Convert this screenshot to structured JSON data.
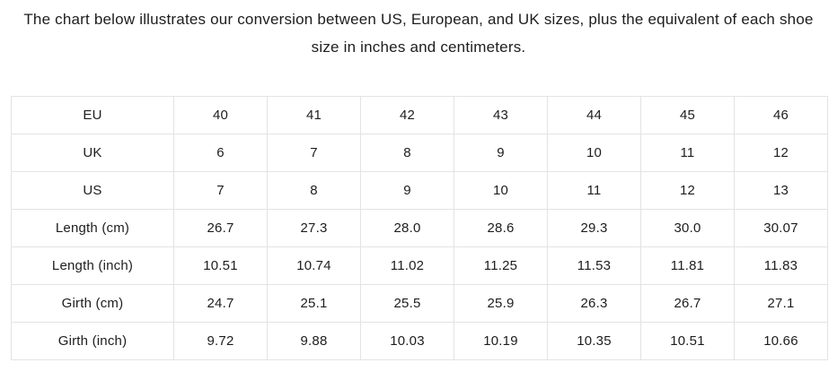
{
  "heading": "The chart below illustrates our conversion between US, European, and UK sizes, plus the equivalent of each shoe size in inches and centimeters.",
  "colors": {
    "background": "#ffffff",
    "text": "#1d1d1d",
    "table_border": "#e3e3e3"
  },
  "chart_data": {
    "type": "table",
    "title": "The chart below illustrates our conversion between US, European, and UK sizes, plus the equivalent of each shoe size in inches and centimeters.",
    "row_headers": [
      "EU",
      "UK",
      "US",
      "Length (cm)",
      "Length (inch)",
      "Girth (cm)",
      "Girth (inch)"
    ],
    "rows": [
      {
        "label": "EU",
        "values": [
          "40",
          "41",
          "42",
          "43",
          "44",
          "45",
          "46"
        ]
      },
      {
        "label": "UK",
        "values": [
          "6",
          "7",
          "8",
          "9",
          "10",
          "11",
          "12"
        ]
      },
      {
        "label": "US",
        "values": [
          "7",
          "8",
          "9",
          "10",
          "11",
          "12",
          "13"
        ]
      },
      {
        "label": "Length (cm)",
        "values": [
          "26.7",
          "27.3",
          "28.0",
          "28.6",
          "29.3",
          "30.0",
          "30.07"
        ]
      },
      {
        "label": "Length (inch)",
        "values": [
          "10.51",
          "10.74",
          "11.02",
          "11.25",
          "11.53",
          "11.81",
          "11.83"
        ]
      },
      {
        "label": "Girth (cm)",
        "values": [
          "24.7",
          "25.1",
          "25.5",
          "25.9",
          "26.3",
          "26.7",
          "27.1"
        ]
      },
      {
        "label": "Girth (inch)",
        "values": [
          "9.72",
          "9.88",
          "10.03",
          "10.19",
          "10.35",
          "10.51",
          "10.66"
        ]
      }
    ]
  }
}
